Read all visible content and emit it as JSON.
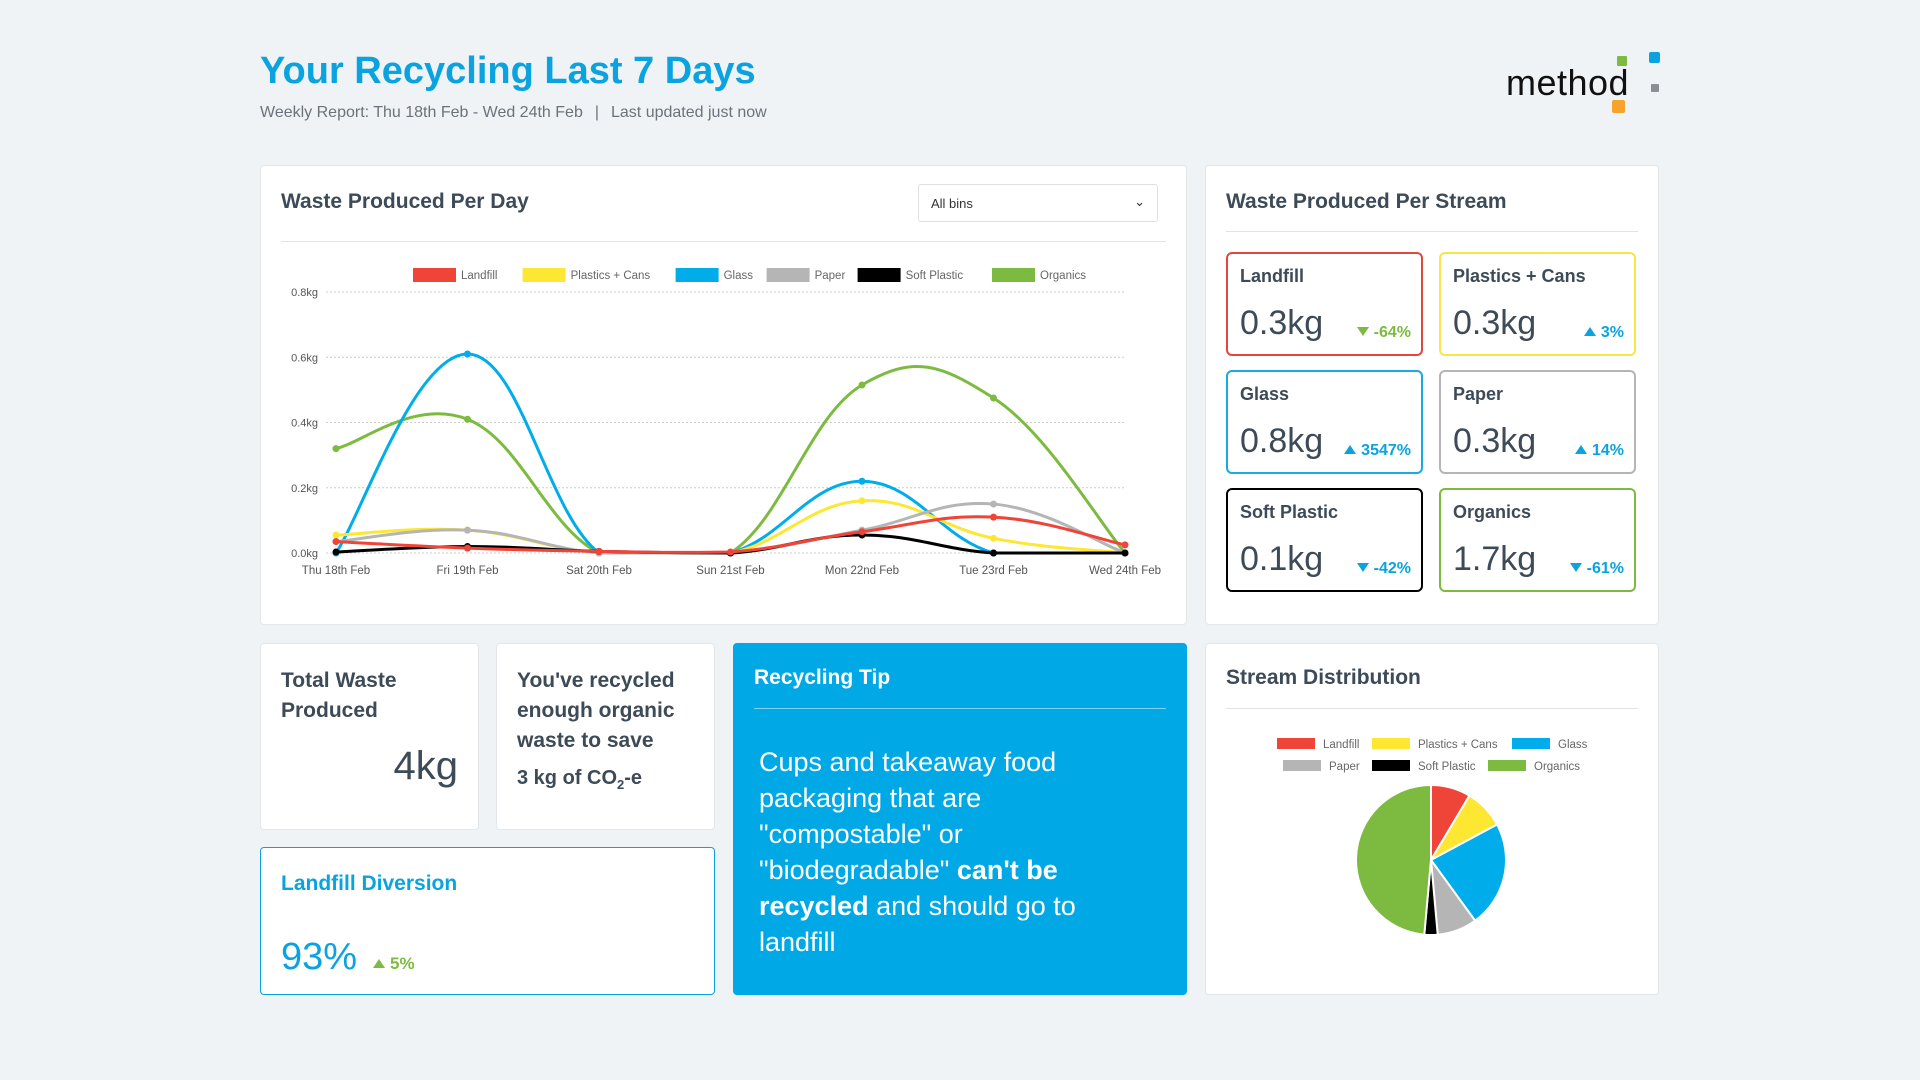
{
  "header": {
    "title": "Your Recycling Last 7 Days",
    "report": "Weekly Report: Thu 18th Feb - Wed 24th Feb",
    "separator": "|",
    "updated_label": "Last updated",
    "updated_value": "just now",
    "logo_text": "method"
  },
  "colors": {
    "accent": "#0aa3e0",
    "landfill": "#ef4438",
    "plastics": "#fde732",
    "glass": "#00adea",
    "paper": "#b5b5b5",
    "soft": "#000000",
    "organics": "#7dbb40",
    "green": "#7dbb40"
  },
  "per_day": {
    "title": "Waste Produced Per Day",
    "filter": {
      "selected": "All bins"
    }
  },
  "chart_data": [
    {
      "type": "line",
      "title": "Waste Produced Per Day",
      "categories": [
        "Thu 18th Feb",
        "Fri 19th Feb",
        "Sat 20th Feb",
        "Sun 21st Feb",
        "Mon 22nd Feb",
        "Tue 23rd Feb",
        "Wed 24th Feb"
      ],
      "yticks": [
        "0.0kg",
        "0.2kg",
        "0.4kg",
        "0.6kg",
        "0.8kg"
      ],
      "ylim": [
        0,
        0.8
      ],
      "grid": true,
      "legend": "top",
      "series": [
        {
          "name": "Landfill",
          "color": "#ef4438",
          "values": [
            0.035,
            0.015,
            0.005,
            0.003,
            0.065,
            0.11,
            0.025
          ]
        },
        {
          "name": "Plastics + Cans",
          "color": "#fde732",
          "values": [
            0.055,
            0.07,
            0,
            0,
            0.16,
            0.045,
            0
          ]
        },
        {
          "name": "Glass",
          "color": "#00adea",
          "values": [
            0,
            0.61,
            0,
            0,
            0.22,
            0,
            0
          ]
        },
        {
          "name": "Paper",
          "color": "#b5b5b5",
          "values": [
            0.035,
            0.07,
            0,
            0,
            0.07,
            0.15,
            0
          ]
        },
        {
          "name": "Soft Plastic",
          "color": "#000000",
          "values": [
            0.003,
            0.02,
            0.005,
            0,
            0.055,
            0,
            0
          ]
        },
        {
          "name": "Organics",
          "color": "#7dbb40",
          "values": [
            0.32,
            0.41,
            0,
            0,
            0.515,
            0.475,
            0
          ]
        }
      ]
    },
    {
      "type": "pie",
      "title": "Stream Distribution",
      "legend": "top",
      "categories": [
        "Landfill",
        "Plastics + Cans",
        "Glass",
        "Paper",
        "Soft Plastic",
        "Organics"
      ],
      "values": [
        0.3,
        0.3,
        0.8,
        0.3,
        0.1,
        1.7
      ],
      "colors": [
        "#ef4438",
        "#fde732",
        "#00adea",
        "#b5b5b5",
        "#000000",
        "#7dbb40"
      ]
    }
  ],
  "per_stream": {
    "title": "Waste Produced Per Stream",
    "items": [
      {
        "name": "Landfill",
        "value": "0.3kg",
        "change": "-64%",
        "dir": "down",
        "change_color": "#7dbb40",
        "border": "#e0483e"
      },
      {
        "name": "Plastics + Cans",
        "value": "0.3kg",
        "change": "3%",
        "dir": "up",
        "change_color": "#0aa3e0",
        "border": "#f7e54a"
      },
      {
        "name": "Glass",
        "value": "0.8kg",
        "change": "3547%",
        "dir": "up",
        "change_color": "#0aa3e0",
        "border": "#1aa9e0"
      },
      {
        "name": "Paper",
        "value": "0.3kg",
        "change": "14%",
        "dir": "up",
        "change_color": "#0aa3e0",
        "border": "#b5b5b5"
      },
      {
        "name": "Soft Plastic",
        "value": "0.1kg",
        "change": "-42%",
        "dir": "down",
        "change_color": "#0aa3e0",
        "border": "#000000"
      },
      {
        "name": "Organics",
        "value": "1.7kg",
        "change": "-61%",
        "dir": "down",
        "change_color": "#0aa3e0",
        "border": "#7dbb40"
      }
    ]
  },
  "total": {
    "title": "Total Waste Produced",
    "value": "4kg"
  },
  "co2": {
    "title": "You've recycled enough organic waste to save",
    "amount": "3 kg of CO",
    "sub": "2",
    "suffix": "-e"
  },
  "diversion": {
    "title": "Landfill Diversion",
    "value": "93%",
    "change": "5%"
  },
  "tip": {
    "title": "Recycling Tip",
    "text1": "Cups and takeaway food packaging that are \"compostable\" or \"biodegradable\" ",
    "bold": "can't be recycled",
    "text2": " and should go to landfill"
  },
  "distribution": {
    "title": "Stream Distribution"
  }
}
